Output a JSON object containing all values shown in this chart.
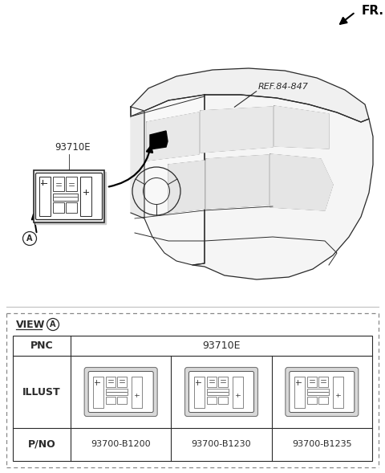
{
  "bg_color": "#ffffff",
  "fr_label": "FR.",
  "ref_label": "REF.84-847",
  "part_label": "93710E",
  "table_pnc_label": "PNC",
  "table_pnc_value": "93710E",
  "table_illust_label": "ILLUST",
  "table_pno_label": "P/NO",
  "part_numbers": [
    "93700-B1200",
    "93700-B1230",
    "93700-B1235"
  ],
  "line_color": "#2a2a2a",
  "gray": "#888888",
  "view_a_label": "VIEW",
  "view_a_circle": "A"
}
